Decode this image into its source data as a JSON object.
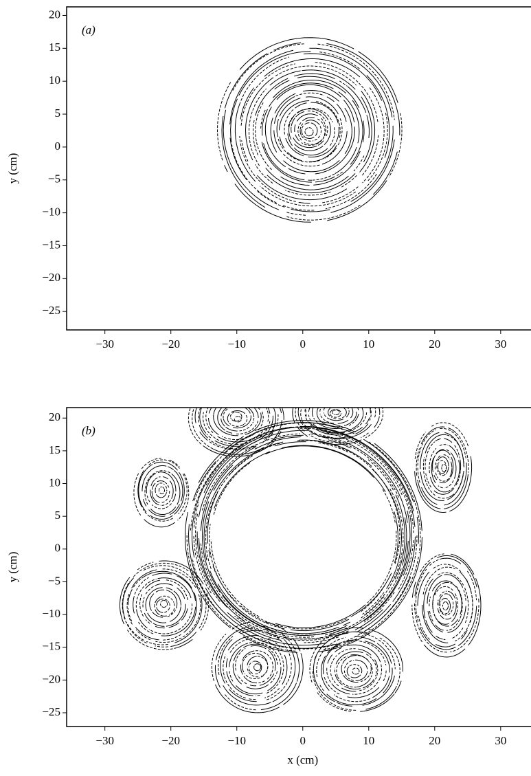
{
  "chart_data": [
    {
      "type": "streak",
      "panel_label": "(a)",
      "y_label": "y (cm)",
      "xlim": [
        -35.8,
        34.6
      ],
      "ylim": [
        -27.8,
        21.3
      ],
      "xticks": [
        {
          "value": -30,
          "label": "−30"
        },
        {
          "value": -20,
          "label": "−20"
        },
        {
          "value": -10,
          "label": "−10"
        },
        0,
        10,
        20,
        30
      ],
      "yticks": [
        20,
        15,
        10,
        5,
        0,
        {
          "value": -5,
          "label": "−5"
        },
        {
          "value": -10,
          "label": "−10"
        },
        {
          "value": -15,
          "label": "−15"
        },
        {
          "value": -20,
          "label": "−20"
        },
        {
          "value": -25,
          "label": "−25"
        }
      ]
    },
    {
      "type": "streak",
      "panel_label": "(b)",
      "y_label": "y (cm)",
      "x_label": "x (cm)",
      "xlim": [
        -35.8,
        34.6
      ],
      "ylim": [
        -27.1,
        21.6
      ],
      "xticks": [
        {
          "value": -30,
          "label": "−30"
        },
        {
          "value": -20,
          "label": "−20"
        },
        {
          "value": -10,
          "label": "−10"
        },
        0,
        10,
        20,
        30
      ],
      "yticks": [
        20,
        15,
        10,
        5,
        0,
        {
          "value": -5,
          "label": "−5"
        },
        {
          "value": -10,
          "label": "−10"
        },
        {
          "value": -15,
          "label": "−15"
        },
        {
          "value": -20,
          "label": "−20"
        },
        {
          "value": -25,
          "label": "−25"
        }
      ]
    }
  ]
}
